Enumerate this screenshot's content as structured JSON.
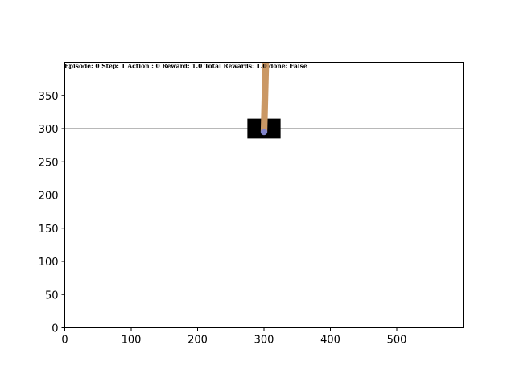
{
  "status_line": "Episode: 0 Step: 1 Action : 0 Reward: 1.0 Total Rewards: 1.0 done: False",
  "axes": {
    "x_ticks": [
      "0",
      "100",
      "200",
      "300",
      "400",
      "500"
    ],
    "y_ticks": [
      "0",
      "50",
      "100",
      "150",
      "200",
      "250",
      "300",
      "350"
    ],
    "x_range": [
      0,
      600
    ],
    "y_range": [
      400,
      0
    ]
  },
  "scene": {
    "track_y": 300,
    "cart": {
      "x_center": 300,
      "y_center": 300,
      "width": 50,
      "height": 30
    },
    "pole": {
      "pivot_x": 300,
      "pivot_y": 295,
      "length": 120,
      "angle_deg": 1.5,
      "width": 10
    }
  },
  "colors": {
    "background": "#ffffff",
    "cart": "#000000",
    "pole": "#ca9865",
    "axle": "#8184cb",
    "track": "#000000",
    "axes": "#000000"
  }
}
